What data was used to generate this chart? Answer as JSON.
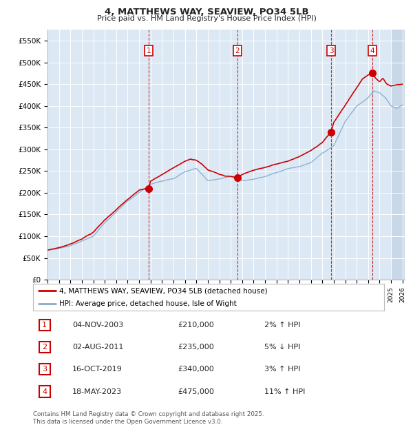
{
  "title": "4, MATTHEWS WAY, SEAVIEW, PO34 5LB",
  "subtitle": "Price paid vs. HM Land Registry's House Price Index (HPI)",
  "ylabel_ticks": [
    "£0",
    "£50K",
    "£100K",
    "£150K",
    "£200K",
    "£250K",
    "£300K",
    "£350K",
    "£400K",
    "£450K",
    "£500K",
    "£550K"
  ],
  "ytick_values": [
    0,
    50000,
    100000,
    150000,
    200000,
    250000,
    300000,
    350000,
    400000,
    450000,
    500000,
    550000
  ],
  "ylim": [
    0,
    575000
  ],
  "xmin": 1995.0,
  "xmax": 2026.2,
  "background_color": "#dce9f5",
  "plot_bg_color": "#dce9f5",
  "legend_label_red": "4, MATTHEWS WAY, SEAVIEW, PO34 5LB (detached house)",
  "legend_label_blue": "HPI: Average price, detached house, Isle of Wight",
  "transactions": [
    {
      "num": 1,
      "date": "04-NOV-2003",
      "price": 210000,
      "pct": "2%",
      "dir": "↑",
      "x": 2003.84
    },
    {
      "num": 2,
      "date": "02-AUG-2011",
      "price": 235000,
      "pct": "5%",
      "dir": "↓",
      "x": 2011.58
    },
    {
      "num": 3,
      "date": "16-OCT-2019",
      "price": 340000,
      "pct": "3%",
      "dir": "↑",
      "x": 2019.79
    },
    {
      "num": 4,
      "date": "18-MAY-2023",
      "price": 475000,
      "pct": "11%",
      "dir": "↑",
      "x": 2023.37
    }
  ],
  "footer": "Contains HM Land Registry data © Crown copyright and database right 2025.\nThis data is licensed under the Open Government Licence v3.0.",
  "red_line_color": "#cc0000",
  "blue_line_color": "#88aacc",
  "transaction_box_color": "#cc0000",
  "hatch_start": 2025.0
}
